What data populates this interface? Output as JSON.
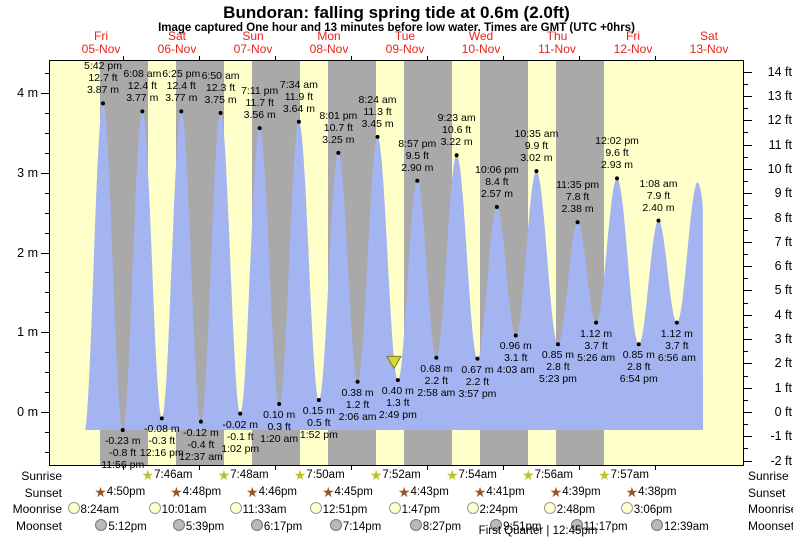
{
  "title": "Bundoran: falling  spring tide at 0.6m (2.0ft)",
  "subtitle": "Image captured One hour and 13 minutes before low water. Times are GMT (UTC +0hrs)",
  "colors": {
    "day_band": "#ffffc9",
    "night_band": "#a9a9a9",
    "water": "#a4b4f0",
    "day_label_red": "#e8241d",
    "marker_fill": "#ddd52f",
    "marker_stroke": "#7a7a22",
    "sunrise_star": "#b9c127",
    "sunset_star": "#96562a",
    "moonrise_circle": "#ffffcc",
    "moonset_circle": "#b9b9b9"
  },
  "chart_data": {
    "type": "area",
    "title": "Bundoran: falling  spring tide at 0.6m (2.0ft)",
    "x_axis": {
      "days": [
        {
          "weekday": "Fri",
          "date": "05-Nov"
        },
        {
          "weekday": "Sat",
          "date": "06-Nov"
        },
        {
          "weekday": "Sun",
          "date": "07-Nov"
        },
        {
          "weekday": "Mon",
          "date": "08-Nov"
        },
        {
          "weekday": "Tue",
          "date": "09-Nov"
        },
        {
          "weekday": "Wed",
          "date": "10-Nov"
        },
        {
          "weekday": "Thu",
          "date": "11-Nov"
        },
        {
          "weekday": "Fri",
          "date": "12-Nov"
        },
        {
          "weekday": "Sat",
          "date": "13-Nov"
        }
      ]
    },
    "y_axis_left": {
      "unit": "m",
      "tick_labels": [
        "4 m",
        "3 m",
        "2 m",
        "1 m",
        "0 m"
      ],
      "min": 0,
      "max": 4
    },
    "y_axis_right": {
      "unit": "ft",
      "min": -2,
      "max": 14
    },
    "high_tides": [
      {
        "time": "5:42 pm",
        "label_ft": "12.7 ft",
        "label_m": "3.87 m",
        "value_m": 3.87,
        "hours": 17.7
      },
      {
        "time": "6:08 am",
        "label_ft": "12.4 ft",
        "label_m": "3.77 m",
        "value_m": 3.77,
        "hours": 30.13
      },
      {
        "time": "6:25 pm",
        "label_ft": "12.4 ft",
        "label_m": "3.77 m",
        "value_m": 3.77,
        "hours": 42.42
      },
      {
        "time": "6:50 am",
        "label_ft": "12.3 ft",
        "label_m": "3.75 m",
        "value_m": 3.75,
        "hours": 54.83
      },
      {
        "time": "7:11 pm",
        "label_ft": "11.7 ft",
        "label_m": "3.56 m",
        "value_m": 3.56,
        "hours": 67.18
      },
      {
        "time": "7:34 am",
        "label_ft": "11.9 ft",
        "label_m": "3.64 m",
        "value_m": 3.64,
        "hours": 79.57
      },
      {
        "time": "8:01 pm",
        "label_ft": "10.7 ft",
        "label_m": "3.25 m",
        "value_m": 3.25,
        "hours": 92.02
      },
      {
        "time": "8:24 am",
        "label_ft": "11.3 ft",
        "label_m": "3.45 m",
        "value_m": 3.45,
        "hours": 104.4
      },
      {
        "time": "8:57 pm",
        "label_ft": "9.5 ft",
        "label_m": "2.90 m",
        "value_m": 2.9,
        "hours": 116.95
      },
      {
        "time": "9:23 am",
        "label_ft": "10.6 ft",
        "label_m": "3.22 m",
        "value_m": 3.22,
        "hours": 129.38
      },
      {
        "time": "10:06 pm",
        "label_ft": "8.4 ft",
        "label_m": "2.57 m",
        "value_m": 2.57,
        "hours": 142.1
      },
      {
        "time": "10:35 am",
        "label_ft": "9.9 ft",
        "label_m": "3.02 m",
        "value_m": 3.02,
        "hours": 154.58
      },
      {
        "time": "11:35 pm",
        "label_ft": "7.8 ft",
        "label_m": "2.38 m",
        "value_m": 2.38,
        "hours": 167.58
      },
      {
        "time": "12:02 pm",
        "label_ft": "9.6 ft",
        "label_m": "2.93 m",
        "value_m": 2.93,
        "hours": 180.03
      },
      {
        "time": "1:08 am",
        "label_ft": "7.9 ft",
        "label_m": "2.40 m",
        "value_m": 2.4,
        "hours": 193.13
      }
    ],
    "low_tides": [
      {
        "time": "11:56 pm",
        "label_ft": "-0.8 ft",
        "label_m": "-0.23 m",
        "value_m": -0.23,
        "hours": 23.93
      },
      {
        "time": "12:16 pm",
        "label_ft": "-0.3 ft",
        "label_m": "-0.08 m",
        "value_m": -0.08,
        "hours": 36.27
      },
      {
        "time": "12:37 am",
        "label_ft": "-0.4 ft",
        "label_m": "-0.12 m",
        "value_m": -0.12,
        "hours": 48.62
      },
      {
        "time": "1:02 pm",
        "label_ft": "-0.1 ft",
        "label_m": "-0.02 m",
        "value_m": -0.02,
        "hours": 61.03
      },
      {
        "time": "1:20 am",
        "label_ft": "0.3 ft",
        "label_m": "0.10 m",
        "value_m": 0.1,
        "hours": 73.33
      },
      {
        "time": "1:52 pm",
        "label_ft": "0.5 ft",
        "label_m": "0.15 m",
        "value_m": 0.15,
        "hours": 85.87
      },
      {
        "time": "2:06 am",
        "label_ft": "1.2 ft",
        "label_m": "0.38 m",
        "value_m": 0.38,
        "hours": 98.1
      },
      {
        "time": "2:49 pm",
        "label_ft": "1.3 ft",
        "label_m": "0.40 m",
        "value_m": 0.4,
        "hours": 110.82
      },
      {
        "time": "2:58 am",
        "label_ft": "2.2 ft",
        "label_m": "0.68 m",
        "value_m": 0.68,
        "hours": 122.97
      },
      {
        "time": "3:57 pm",
        "label_ft": "2.2 ft",
        "label_m": "0.67 m",
        "value_m": 0.67,
        "hours": 135.95
      },
      {
        "time": "4:03 am",
        "label_ft": "3.1 ft",
        "label_m": "0.96 m",
        "value_m": 0.96,
        "hours": 148.05
      },
      {
        "time": "5:23 pm",
        "label_ft": "2.8 ft",
        "label_m": "0.85 m",
        "value_m": 0.85,
        "hours": 161.38
      },
      {
        "time": "5:26 am",
        "label_ft": "3.7 ft",
        "label_m": "1.12 m",
        "value_m": 1.12,
        "hours": 173.43
      },
      {
        "time": "6:54 pm",
        "label_ft": "2.8 ft",
        "label_m": "0.85 m",
        "value_m": 0.85,
        "hours": 186.9
      },
      {
        "time": "6:56 am",
        "label_ft": "3.7 ft",
        "label_m": "1.12 m",
        "value_m": 1.12,
        "hours": 198.93
      }
    ],
    "unlabeled_points": [
      {
        "value_m": -0.28,
        "hours": 11.67
      },
      {
        "value_m": 2.88,
        "hours": 205.5
      },
      {
        "value_m": 0.9,
        "hours": 212.0
      }
    ],
    "current_marker": {
      "hours": 109.6,
      "level_m": 0.61
    }
  },
  "astro": {
    "rows": [
      {
        "label": "Sunrise",
        "icon": "sunrise-star-icon",
        "entries": [
          {
            "time": "7:46am",
            "hours": 31.77
          },
          {
            "time": "7:48am",
            "hours": 55.8
          },
          {
            "time": "7:50am",
            "hours": 79.83
          },
          {
            "time": "7:52am",
            "hours": 103.87
          },
          {
            "time": "7:54am",
            "hours": 127.9
          },
          {
            "time": "7:56am",
            "hours": 151.93
          },
          {
            "time": "7:57am",
            "hours": 175.95
          }
        ]
      },
      {
        "label": "Sunset",
        "icon": "sunset-star-icon",
        "entries": [
          {
            "time": "4:50pm",
            "hours": 16.83
          },
          {
            "time": "4:48pm",
            "hours": 40.8
          },
          {
            "time": "4:46pm",
            "hours": 64.77
          },
          {
            "time": "4:45pm",
            "hours": 88.75
          },
          {
            "time": "4:43pm",
            "hours": 112.72
          },
          {
            "time": "4:41pm",
            "hours": 136.68
          },
          {
            "time": "4:39pm",
            "hours": 160.65
          },
          {
            "time": "4:38pm",
            "hours": 184.63
          }
        ]
      },
      {
        "label": "Moonrise",
        "icon": "moonrise-circle-icon",
        "entries": [
          {
            "time": "8:24am",
            "hours": 8.4
          },
          {
            "time": "10:01am",
            "hours": 34.02
          },
          {
            "time": "11:33am",
            "hours": 59.55
          },
          {
            "time": "12:51pm",
            "hours": 84.85
          },
          {
            "time": "1:47pm",
            "hours": 109.78
          },
          {
            "time": "2:24pm",
            "hours": 134.4
          },
          {
            "time": "2:48pm",
            "hours": 158.8
          },
          {
            "time": "3:06pm",
            "hours": 183.1
          }
        ]
      },
      {
        "label": "Moonset",
        "icon": "moonset-circle-icon",
        "entries": [
          {
            "time": "5:12pm",
            "hours": 17.2
          },
          {
            "time": "5:39pm",
            "hours": 41.65
          },
          {
            "time": "6:17pm",
            "hours": 66.28
          },
          {
            "time": "7:14pm",
            "hours": 91.23
          },
          {
            "time": "8:27pm",
            "hours": 116.45
          },
          {
            "time": "9:51pm",
            "hours": 141.85
          },
          {
            "time": "11:17pm",
            "hours": 167.28
          },
          {
            "time": "12:39am",
            "hours": 192.65
          }
        ]
      }
    ],
    "phase_label": "First Quarter | 12:45pm"
  }
}
